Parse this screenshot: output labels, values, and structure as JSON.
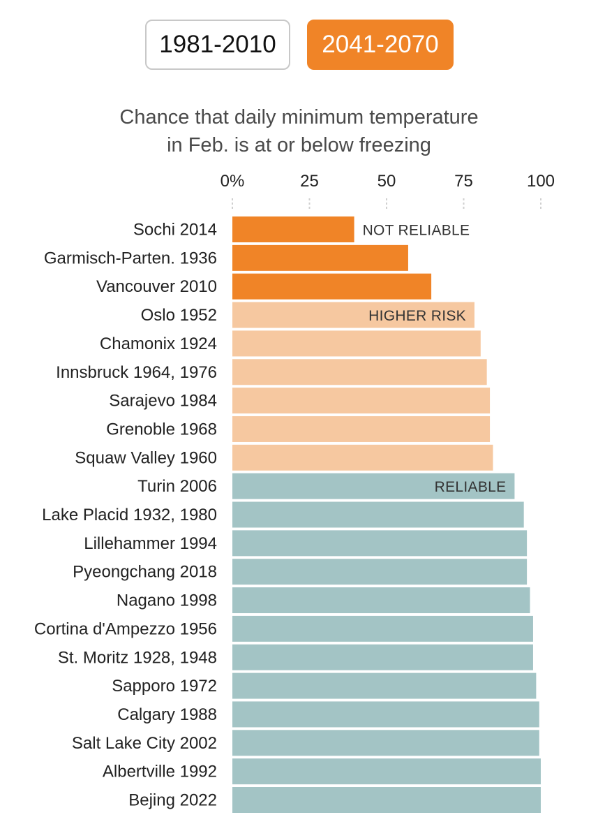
{
  "toggle": {
    "option_a": "1981-2010",
    "option_b": "2041-2070",
    "selected": "2041-2070"
  },
  "chart_data": {
    "type": "bar",
    "orientation": "horizontal",
    "title_line1": "Chance that daily minimum temperature",
    "title_line2": "in Feb. is at or below freezing",
    "xlim": [
      0,
      100
    ],
    "ticks": [
      "0%",
      "25",
      "50",
      "75",
      "100"
    ],
    "tick_values": [
      0,
      25,
      50,
      75,
      100
    ],
    "categories": [
      "Sochi 2014",
      "Garmisch-Parten. 1936",
      "Vancouver 2010",
      "Oslo 1952",
      "Chamonix 1924",
      "Innsbruck 1964, 1976",
      "Sarajevo 1984",
      "Grenoble 1968",
      "Squaw Valley 1960",
      "Turin 2006",
      "Lake Placid 1932, 1980",
      "Lillehammer 1994",
      "Pyeongchang 2018",
      "Nagano 1998",
      "Cortina d'Ampezzo 1956",
      "St. Moritz 1928, 1948",
      "Sapporo 1972",
      "Calgary 1988",
      "Salt Lake City 2002",
      "Albertville 1992",
      "Bejing 2022"
    ],
    "values": [
      39.5,
      57,
      64.5,
      78.5,
      80.5,
      82.5,
      83.5,
      83.5,
      84.5,
      91.5,
      94.5,
      95.5,
      95.5,
      96.5,
      97.5,
      97.5,
      98.5,
      99.5,
      99.5,
      100,
      100
    ],
    "groups": [
      "not_reliable",
      "not_reliable",
      "not_reliable",
      "higher_risk",
      "higher_risk",
      "higher_risk",
      "higher_risk",
      "higher_risk",
      "higher_risk",
      "reliable",
      "reliable",
      "reliable",
      "reliable",
      "reliable",
      "reliable",
      "reliable",
      "reliable",
      "reliable",
      "reliable",
      "reliable",
      "reliable"
    ],
    "group_colors": {
      "not_reliable": "#f08427",
      "higher_risk": "#f6c8a0",
      "reliable": "#a3c4c5"
    },
    "annotations": [
      {
        "text": "NOT RELIABLE",
        "category_index": 0
      },
      {
        "text": "HIGHER RISK",
        "category_index": 3
      },
      {
        "text": "RELIABLE",
        "category_index": 9
      }
    ]
  }
}
